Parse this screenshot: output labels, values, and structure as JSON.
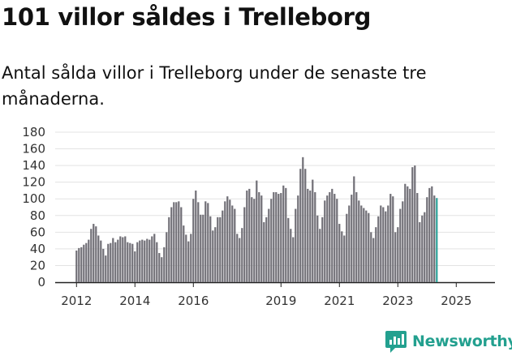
{
  "header": {
    "title": "101 villor såldes i Trelleborg",
    "subtitle": "Antal sålda villor i Trelleborg under de senaste tre månaderna."
  },
  "brand": {
    "name": "Newsworthy",
    "color": "#23a08f"
  },
  "colors": {
    "bar": "#6f6e75",
    "highlight": "#2aa198",
    "grid": "#e3e3e3",
    "axis": "#222222"
  },
  "chart_data": {
    "type": "bar",
    "title": "Antal sålda villor i Trelleborg",
    "xlabel": "",
    "ylabel": "",
    "ylim": [
      0,
      180
    ],
    "yticks": [
      0,
      20,
      40,
      60,
      80,
      100,
      120,
      140,
      160,
      180
    ],
    "xtick_labels": [
      {
        "label": "2012",
        "index": 0
      },
      {
        "label": "2014",
        "index": 24
      },
      {
        "label": "2016",
        "index": 48
      },
      {
        "label": "2019",
        "index": 84
      },
      {
        "label": "2021",
        "index": 108
      },
      {
        "label": "2023",
        "index": 132
      },
      {
        "label": "2025",
        "index": 156
      }
    ],
    "start_period": "2012-01",
    "annotation": {
      "text": "101",
      "index": 162
    },
    "values": [
      38,
      41,
      42,
      45,
      47,
      51,
      64,
      70,
      67,
      56,
      50,
      40,
      32,
      46,
      47,
      53,
      48,
      51,
      55,
      54,
      55,
      48,
      47,
      46,
      37,
      48,
      50,
      51,
      50,
      52,
      51,
      55,
      58,
      48,
      35,
      30,
      42,
      60,
      78,
      90,
      96,
      96,
      97,
      90,
      68,
      57,
      49,
      58,
      100,
      110,
      96,
      81,
      81,
      97,
      95,
      79,
      62,
      66,
      78,
      78,
      86,
      97,
      103,
      99,
      92,
      88,
      58,
      53,
      65,
      90,
      110,
      112,
      102,
      100,
      122,
      108,
      104,
      72,
      78,
      88,
      100,
      108,
      108,
      106,
      107,
      116,
      113,
      77,
      64,
      54,
      88,
      104,
      136,
      150,
      136,
      112,
      110,
      123,
      108,
      80,
      64,
      78,
      98,
      104,
      108,
      112,
      106,
      100,
      70,
      61,
      56,
      82,
      92,
      105,
      127,
      108,
      98,
      92,
      89,
      86,
      83,
      60,
      53,
      66,
      79,
      92,
      90,
      85,
      92,
      106,
      103,
      60,
      66,
      88,
      97,
      118,
      115,
      112,
      138,
      140,
      107,
      72,
      80,
      84,
      102,
      113,
      115,
      104,
      101
    ]
  }
}
